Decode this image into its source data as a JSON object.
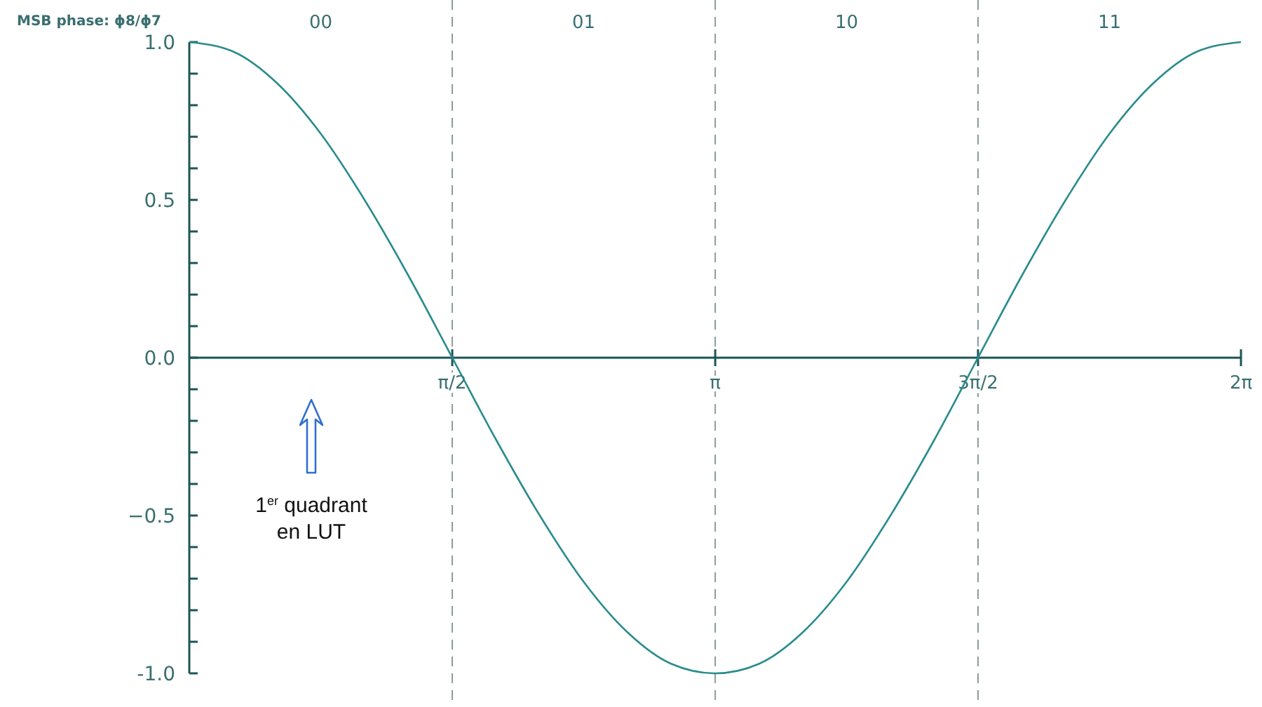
{
  "chart_data": {
    "type": "line",
    "title": "MSB phase:  ϕ8/ϕ7",
    "x": [
      0,
      0.262,
      0.524,
      0.785,
      1.047,
      1.309,
      1.571,
      1.833,
      2.094,
      2.356,
      2.618,
      2.88,
      3.142,
      3.403,
      3.665,
      3.927,
      4.189,
      4.451,
      4.712,
      4.974,
      5.236,
      5.498,
      5.76,
      6.021,
      6.283
    ],
    "series": [
      {
        "color": "#2a8c8c",
        "values": [
          1,
          0.97,
          0.87,
          0.71,
          0.5,
          0.26,
          0,
          -0.26,
          -0.5,
          -0.71,
          -0.87,
          -0.97,
          -1,
          -0.97,
          -0.87,
          -0.71,
          -0.5,
          -0.26,
          0,
          0.26,
          0.5,
          0.71,
          0.87,
          0.97,
          1
        ]
      }
    ],
    "xlim": [
      0,
      6.283
    ],
    "ylim": [
      -1,
      1
    ],
    "xticks": [
      {
        "value": 1.571,
        "label": "π/2"
      },
      {
        "value": 3.142,
        "label": "π"
      },
      {
        "value": 4.712,
        "label": "3π/2"
      },
      {
        "value": 6.283,
        "label": "2π"
      }
    ],
    "yticks": [
      {
        "value": -1,
        "label": "-1.0"
      },
      {
        "value": -0.9,
        "label": null
      },
      {
        "value": -0.8,
        "label": null
      },
      {
        "value": -0.7,
        "label": null
      },
      {
        "value": -0.6,
        "label": null
      },
      {
        "value": -0.5,
        "label": "−0.5"
      },
      {
        "value": -0.4,
        "label": null
      },
      {
        "value": -0.3,
        "label": null
      },
      {
        "value": -0.2,
        "label": null
      },
      {
        "value": -0.1,
        "label": null
      },
      {
        "value": 0,
        "label": "0.0"
      },
      {
        "value": 0.1,
        "label": null
      },
      {
        "value": 0.2,
        "label": null
      },
      {
        "value": 0.3,
        "label": null
      },
      {
        "value": 0.4,
        "label": null
      },
      {
        "value": 0.5,
        "label": "0.5"
      },
      {
        "value": 0.6,
        "label": null
      },
      {
        "value": 0.7,
        "label": null
      },
      {
        "value": 0.8,
        "label": null
      },
      {
        "value": 0.9,
        "label": null
      },
      {
        "value": 1,
        "label": "1.0"
      }
    ],
    "ref_lines": [
      {
        "axis": "x",
        "value": 1.571,
        "line_style": "dashed",
        "color": "#8a9a9a"
      },
      {
        "axis": "x",
        "value": 3.142,
        "line_style": "dashed",
        "color": "#8a9a9a"
      },
      {
        "axis": "x",
        "value": 4.712,
        "line_style": "dashed",
        "color": "#8a9a9a"
      }
    ],
    "annotations": [
      "00",
      "01",
      "10",
      "11",
      "1$^{er}$ quadrant en LUT"
    ],
    "grid": false,
    "marker": "none",
    "line_style": "solid"
  }
}
